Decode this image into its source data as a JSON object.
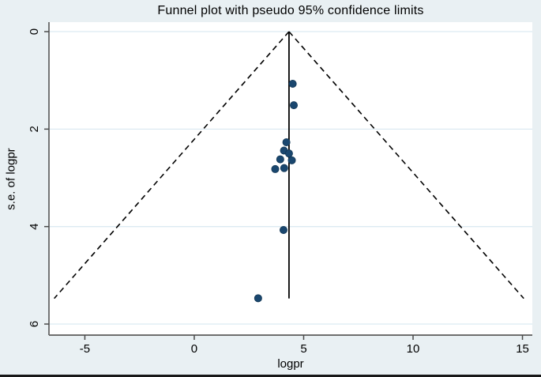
{
  "title": "Funnel plot with pseudo 95% confidence limits",
  "chart_data": {
    "type": "scatter",
    "title": "Funnel plot with pseudo 95% confidence limits",
    "xlabel": "logpr",
    "ylabel": "s.e. of logpr",
    "xlim": [
      -6.64,
      15.45
    ],
    "ylim": [
      -0.195,
      6.227
    ],
    "y_axis_inverted": true,
    "x_ticks": [
      "-5",
      "0",
      "5",
      "10",
      "15"
    ],
    "x_tick_values": [
      -5,
      0,
      5,
      10,
      15
    ],
    "y_ticks": [
      "0",
      "2",
      "4",
      "6"
    ],
    "y_tick_values": [
      0,
      2,
      4,
      6
    ],
    "grid": "horizontal",
    "legend": "none",
    "points": [
      [
        4.5,
        1.07
      ],
      [
        4.55,
        1.51
      ],
      [
        4.21,
        2.27
      ],
      [
        4.1,
        2.44
      ],
      [
        4.33,
        2.5
      ],
      [
        3.93,
        2.62
      ],
      [
        4.46,
        2.64
      ],
      [
        4.11,
        2.8
      ],
      [
        3.7,
        2.82
      ],
      [
        4.08,
        4.07
      ],
      [
        2.92,
        5.47
      ]
    ],
    "estimate_line_x": 4.33,
    "funnel": {
      "center": 4.33,
      "multiplier": 1.96,
      "se_min": 0,
      "se_max": 5.475,
      "style": "dashed"
    },
    "colors": {
      "outer_background": "#e9f0f3",
      "plot_background": "#ffffff",
      "gridline": "#dceaf2",
      "axis_line": "#4a4a4a",
      "bottom_axis_line": "#6e6e6e",
      "marker_fill": "#1a476f",
      "marker_edge": "#123654",
      "funnel_line": "#000000",
      "estimate_line": "#000000",
      "text": "#000000",
      "bottom_border": "#181818"
    }
  }
}
